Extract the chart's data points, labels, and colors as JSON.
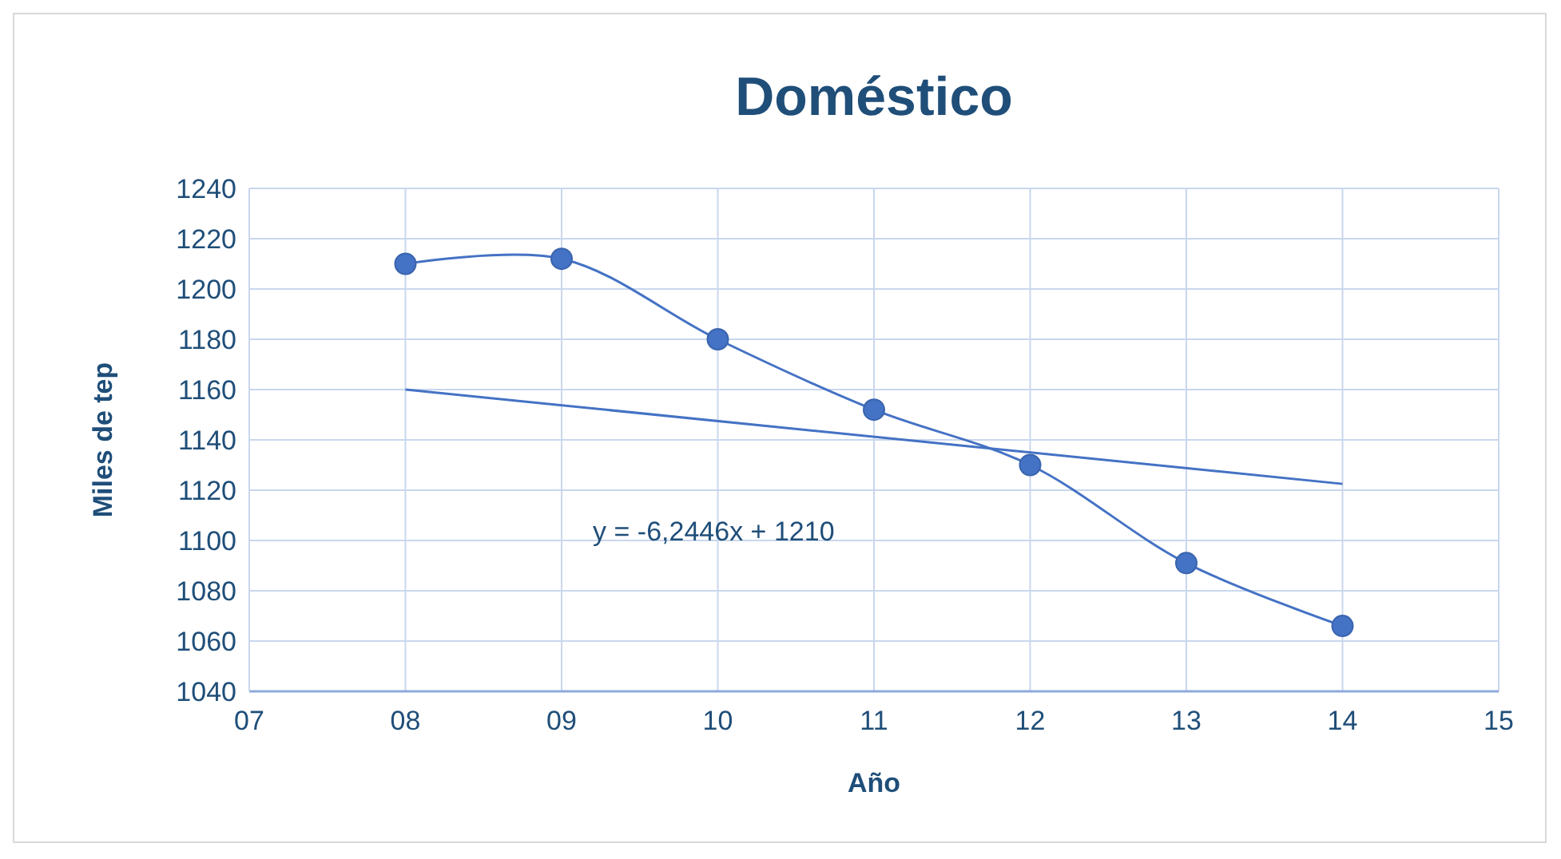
{
  "chart_data": {
    "type": "line",
    "title": "Doméstico",
    "xlabel": "Año",
    "ylabel": "Miles de tep",
    "x": [
      8,
      9,
      10,
      11,
      12,
      13,
      14
    ],
    "series": [
      {
        "color": "#4472c4",
        "marker": "circle",
        "values": [
          1210,
          1212,
          1180,
          1152,
          1130,
          1091,
          1066
        ]
      },
      {
        "color": "#4472c4",
        "marker": "none",
        "x": [
          8,
          14
        ],
        "values": [
          1160,
          1122.5
        ]
      }
    ],
    "xlim": [
      7,
      15
    ],
    "xticks": [
      {
        "value": 7,
        "label": "07"
      },
      {
        "value": 8,
        "label": "08"
      },
      {
        "value": 9,
        "label": "09"
      },
      10,
      11,
      12,
      13,
      14,
      15
    ],
    "ylim": [
      1040,
      1240
    ],
    "yticks": [
      1040,
      1060,
      1080,
      1100,
      1120,
      1140,
      1160,
      1180,
      1200,
      1220,
      1240
    ],
    "grid": true,
    "annotations": [
      "y = -6,2446x + 1210"
    ]
  }
}
